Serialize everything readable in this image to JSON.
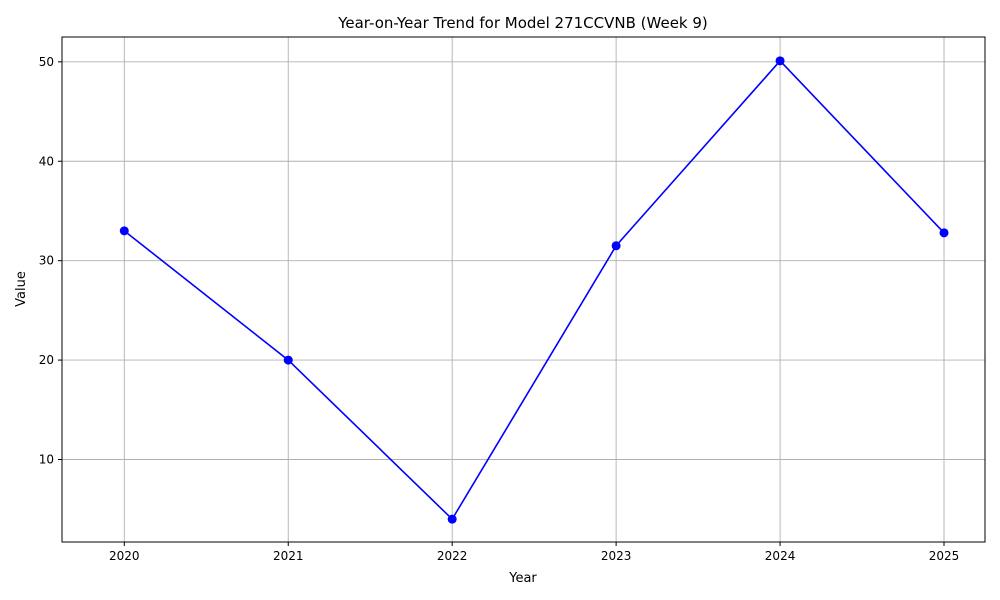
{
  "chart_data": {
    "type": "line",
    "title": "Year-on-Year Trend for Model 271CCVNB (Week 9)",
    "xlabel": "Year",
    "ylabel": "Value",
    "x": [
      2020,
      2021,
      2022,
      2023,
      2024,
      2025
    ],
    "x_tick_labels": [
      "2020",
      "2021",
      "2022",
      "2023",
      "2024",
      "2025"
    ],
    "xlim": [
      2019.62,
      2025.25
    ],
    "ylim": [
      1.7,
      52.5
    ],
    "y_ticks": [
      10,
      20,
      30,
      40,
      50
    ],
    "y_tick_labels": [
      "10",
      "20",
      "30",
      "40",
      "50"
    ],
    "grid": true,
    "legend": "none",
    "series": [
      {
        "values": [
          33.0,
          20.0,
          4.0,
          31.5,
          50.1,
          32.8
        ],
        "color": "#0000ff",
        "marker": "circle"
      }
    ]
  }
}
